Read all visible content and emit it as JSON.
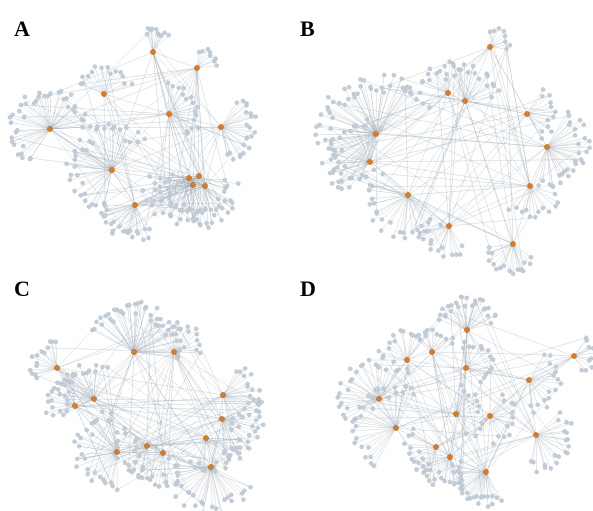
{
  "figure": {
    "panels": [
      {
        "label": "A"
      },
      {
        "label": "B"
      },
      {
        "label": "C"
      },
      {
        "label": "D"
      }
    ],
    "colors": {
      "hub": "#e07a1f",
      "leaf": "#c3cdd7",
      "edge": "#9aa9b7",
      "background": "#ffffff"
    }
  }
}
